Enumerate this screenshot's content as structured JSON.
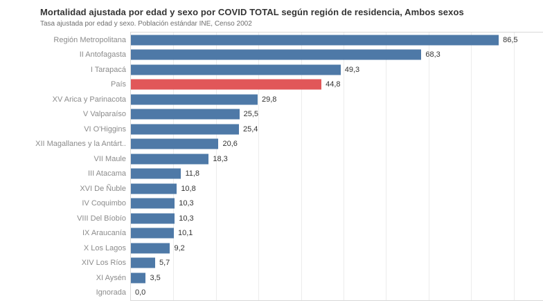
{
  "header": {
    "title": "Mortalidad ajustada por edad y sexo por COVID TOTAL según región de residencia, Ambos sexos",
    "subtitle": "Tasa ajustada por edad y sexo. Población estándar INE, Censo 2002"
  },
  "colors": {
    "bar": "#4e79a7",
    "highlight": "#e15759",
    "gridline": "#ececec",
    "pane_border": "#d7d7d7",
    "category_label": "#8b8b8b",
    "value_label": "#333333"
  },
  "chart_data": {
    "type": "bar",
    "orientation": "horizontal",
    "title": "Mortalidad ajustada por edad y sexo por COVID TOTAL según región de residencia, Ambos sexos",
    "subtitle": "Tasa ajustada por edad y sexo. Población estándar INE, Censo 2002",
    "xlabel": "",
    "ylabel": "",
    "categories": [
      "Región Metropolitana",
      "II Antofagasta",
      "I Tarapacá",
      "País",
      "XV Arica y Parinacota",
      "V Valparaíso",
      "VI O'Higgins",
      "XII Magallanes y la Antárt..",
      "VII Maule",
      "III Atacama",
      "XVI De Ñuble",
      "IV Coquimbo",
      "VIII Del Bíobío",
      "IX Araucanía",
      "X Los Lagos",
      "XIV Los Ríos",
      "XI Aysén",
      "Ignorada"
    ],
    "values": [
      86.5,
      68.3,
      49.3,
      44.8,
      29.8,
      25.5,
      25.4,
      20.6,
      18.3,
      11.8,
      10.8,
      10.3,
      10.3,
      10.1,
      9.2,
      5.7,
      3.5,
      0.0
    ],
    "value_labels": [
      "86,5",
      "68,3",
      "49,3",
      "44,8",
      "29,8",
      "25,5",
      "25,4",
      "20,6",
      "18,3",
      "11,8",
      "10,8",
      "10,3",
      "10,3",
      "10,1",
      "9,2",
      "5,7",
      "3,5",
      "0,0"
    ],
    "highlighted_category": "País",
    "xlim": [
      0,
      96.9
    ],
    "gridline_interval": 10,
    "grid": true,
    "legend": false,
    "sorted": "descending"
  }
}
